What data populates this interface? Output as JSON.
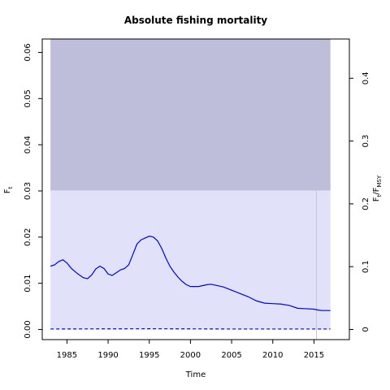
{
  "chart_data": {
    "type": "line",
    "title": "Absolute fishing mortality",
    "xlabel": "Time",
    "ylabel": "F",
    "ylabel_sub": "t",
    "ylabel_right": "F",
    "ylabel_right_sub1": "t",
    "ylabel_right_mid": "/F",
    "ylabel_right_sub2": "MSY",
    "xlim": [
      1982.0,
      2019.3
    ],
    "ylim": [
      -0.0022,
      0.0629
    ],
    "xticks": [
      1985,
      1990,
      1995,
      2000,
      2005,
      2010,
      2015
    ],
    "yticks": [
      0.0,
      0.01,
      0.02,
      0.03,
      0.04,
      0.05,
      0.06
    ],
    "yticks_labels": [
      "0.00",
      "0.01",
      "0.02",
      "0.03",
      "0.04",
      "0.05",
      "0.06"
    ],
    "yticks_right": [
      0,
      0.1,
      0.2,
      0.3,
      0.4
    ],
    "yticks_right_labels": [
      "0",
      "0.1",
      "0.2",
      "0.3",
      "0.4"
    ],
    "fmsy": 0.136,
    "grid": false,
    "bands": [
      {
        "x": [
          1983.0,
          2017.0
        ],
        "y": [
          0.0,
          0.0301
        ],
        "color": "#e1e1fa"
      },
      {
        "x": [
          1983.0,
          2017.0
        ],
        "y": [
          0.0301,
          0.0629
        ],
        "color": "#bebedb"
      }
    ],
    "vline": {
      "x": 2015.3,
      "color": "#c6c6d6"
    },
    "series": [
      {
        "style": "solid",
        "color": "#0000dd",
        "x": [
          1983.0,
          1983.5,
          1984.0,
          1984.5,
          1985.0,
          1985.5,
          1986.0,
          1986.5,
          1987.0,
          1987.5,
          1988.0,
          1988.5,
          1989.0,
          1989.5,
          1990.0,
          1990.5,
          1991.0,
          1991.5,
          1992.0,
          1992.5,
          1993.0,
          1993.5,
          1994.0,
          1994.5,
          1995.0,
          1995.5,
          1996.0,
          1996.5,
          1997.0,
          1997.5,
          1998.0,
          1998.5,
          1999.0,
          1999.5,
          2000.0,
          2001.0,
          2002.0,
          2002.5,
          2003.0,
          2004.0,
          2005.0,
          2006.0,
          2007.0,
          2008.0,
          2009.0,
          2010.0,
          2011.0,
          2012.0,
          2013.0,
          2014.0,
          2015.0,
          2015.5,
          2016.0,
          2016.5,
          2017.0
        ],
        "y": [
          0.0137,
          0.014,
          0.0147,
          0.0151,
          0.0144,
          0.0133,
          0.0125,
          0.0118,
          0.0112,
          0.011,
          0.0118,
          0.0131,
          0.0137,
          0.0132,
          0.012,
          0.0117,
          0.0123,
          0.0129,
          0.0132,
          0.014,
          0.0162,
          0.0185,
          0.0194,
          0.0198,
          0.0202,
          0.02,
          0.0192,
          0.0176,
          0.0155,
          0.0137,
          0.0124,
          0.0113,
          0.0104,
          0.0097,
          0.0093,
          0.0093,
          0.0097,
          0.0098,
          0.0096,
          0.0092,
          0.0085,
          0.0078,
          0.0071,
          0.0062,
          0.0057,
          0.0056,
          0.0055,
          0.0052,
          0.0046,
          0.0045,
          0.0044,
          0.0042,
          0.0041,
          0.0041,
          0.0041
        ]
      },
      {
        "style": "dashed",
        "color": "#0000dd",
        "x": [
          1983.0,
          1995.0,
          2005.0,
          2017.0
        ],
        "y": [
          0.0001,
          0.00015,
          0.0001,
          0.0001
        ]
      }
    ]
  }
}
